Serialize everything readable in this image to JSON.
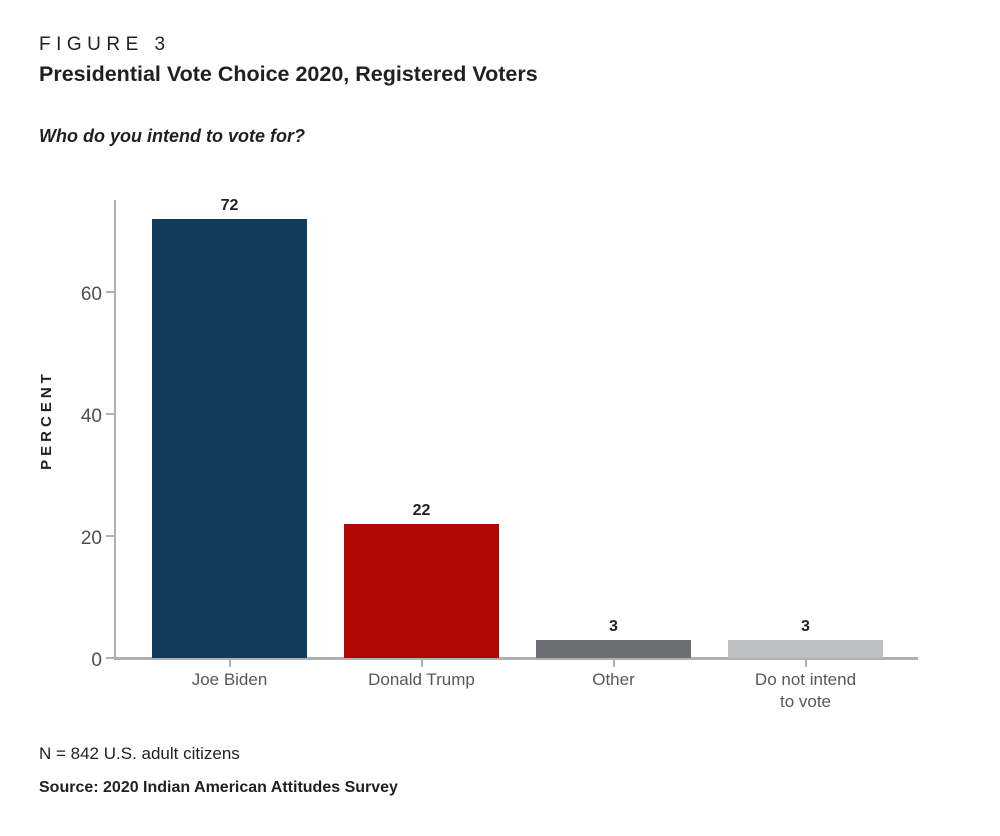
{
  "figure_label": "FIGURE 3",
  "chart_data": {
    "type": "bar",
    "title": "Presidential Vote Choice 2020, Registered Voters",
    "subtitle": "Who do you intend to vote for?",
    "ylabel": "PERCENT",
    "xlabel": "",
    "categories": [
      "Joe Biden",
      "Donald Trump",
      "Other",
      "Do not intend to vote"
    ],
    "xtick_display": [
      "Joe Biden",
      "Donald Trump",
      "Other",
      "Do not intend\nto vote"
    ],
    "values": [
      72,
      22,
      3,
      3
    ],
    "value_labels": [
      "72",
      "22",
      "3",
      "3"
    ],
    "bar_colors": [
      "#113a5c",
      "#b00606",
      "#6d6e71",
      "#bdbfc1"
    ],
    "yticks": [
      0,
      20,
      40,
      60
    ],
    "ylim": [
      0,
      76
    ],
    "grid": false,
    "legend_position": "none"
  },
  "footnotes": {
    "sample_note": "N = 842 U.S. adult citizens",
    "source": "Source: 2020 Indian American Attitudes Survey"
  },
  "colors": {
    "text_primary": "#231f20",
    "text_secondary": "#57585a",
    "axis_line": "#aeb0b2",
    "biden_navy": "#113a5c",
    "trump_red": "#b00606",
    "other_dark_gray": "#6d6e71",
    "no_vote_light_gray": "#bdbfc1"
  }
}
